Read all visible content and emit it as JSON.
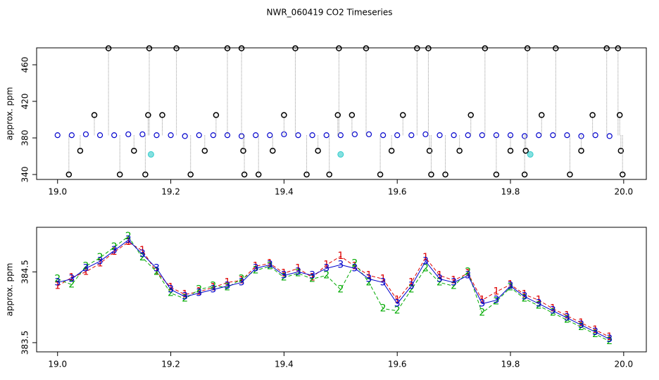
{
  "chart_data": [
    {
      "type": "scatter",
      "title": "NWR_060419  CO2 Timeseries",
      "y_label": "approx. ppm",
      "xlim": [
        18.963,
        20.04
      ],
      "ylim": [
        334.6,
        478.5
      ],
      "xticks": [
        {
          "value": 19,
          "label": "19.0"
        },
        {
          "value": 19.2,
          "label": "19.2"
        },
        {
          "value": 19.4,
          "label": "19.4"
        },
        {
          "value": 19.6,
          "label": "19.6"
        },
        {
          "value": 19.8,
          "label": "19.8"
        },
        {
          "value": 20,
          "label": "20.0"
        }
      ],
      "yticks": [
        340,
        380,
        420,
        460
      ],
      "series": [
        {
          "color": "#0000cc",
          "marker": "circle",
          "x": [
            19.0,
            19.025,
            19.05,
            19.075,
            19.1,
            19.125,
            19.15,
            19.175,
            19.2,
            19.225,
            19.25,
            19.275,
            19.3,
            19.325,
            19.35,
            19.375,
            19.4,
            19.425,
            19.45,
            19.475,
            19.5,
            19.525,
            19.55,
            19.575,
            19.6,
            19.625,
            19.65,
            19.675,
            19.7,
            19.725,
            19.75,
            19.775,
            19.8,
            19.825,
            19.85,
            19.875,
            19.9,
            19.925,
            19.95,
            19.975
          ],
          "values": [
            383,
            383,
            384,
            383,
            383,
            384,
            384,
            383,
            383,
            382,
            383,
            383,
            383,
            382,
            383,
            383,
            384,
            383,
            383,
            383,
            383,
            384,
            384,
            383,
            383,
            383,
            384,
            383,
            383,
            383,
            383,
            383,
            383,
            382,
            383,
            383,
            383,
            382,
            383,
            382
          ]
        },
        {
          "color": "#000000",
          "marker": "outlier",
          "x": [
            19.02,
            19.04,
            19.065,
            19.09,
            19.11,
            19.135,
            19.155,
            19.16,
            19.162,
            19.185,
            19.21,
            19.235,
            19.26,
            19.28,
            19.3,
            19.325,
            19.328,
            19.33,
            19.355,
            19.38,
            19.4,
            19.42,
            19.44,
            19.46,
            19.48,
            19.495,
            19.497,
            19.52,
            19.545,
            19.57,
            19.59,
            19.61,
            19.635,
            19.655,
            19.657,
            19.66,
            19.685,
            19.71,
            19.73,
            19.755,
            19.775,
            19.8,
            19.825,
            19.827,
            19.83,
            19.855,
            19.88,
            19.905,
            19.925,
            19.945,
            19.97,
            19.99,
            19.993,
            19.995,
            19.998
          ],
          "values": [
            340,
            366,
            405,
            478,
            340,
            366,
            340,
            405,
            478,
            405,
            478,
            340,
            366,
            405,
            478,
            478,
            366,
            340,
            340,
            366,
            405,
            478,
            340,
            366,
            340,
            405,
            478,
            405,
            478,
            340,
            366,
            405,
            478,
            478,
            366,
            340,
            340,
            366,
            405,
            478,
            340,
            366,
            340,
            366,
            478,
            405,
            478,
            340,
            366,
            405,
            478,
            478,
            405,
            366,
            340
          ]
        },
        {
          "color": "#33cccc",
          "marker": "dot",
          "x": [
            19.165,
            19.5,
            19.835
          ],
          "values": [
            362,
            362,
            362
          ]
        }
      ]
    },
    {
      "type": "glyph",
      "y_label": "approx. ppm",
      "xlim": [
        18.963,
        20.04
      ],
      "ylim": [
        383.37,
        385.13
      ],
      "xticks": [
        {
          "value": 19,
          "label": "19.0"
        },
        {
          "value": 19.2,
          "label": "19.2"
        },
        {
          "value": 19.4,
          "label": "19.4"
        },
        {
          "value": 19.6,
          "label": "19.6"
        },
        {
          "value": 19.8,
          "label": "19.8"
        },
        {
          "value": 20,
          "label": "20.0"
        }
      ],
      "yticks": [
        {
          "value": 383.5,
          "label": "383.5"
        },
        {
          "value": 384.5,
          "label": "384.5"
        }
      ],
      "x": [
        19.0,
        19.025,
        19.05,
        19.075,
        19.1,
        19.125,
        19.15,
        19.175,
        19.2,
        19.225,
        19.25,
        19.275,
        19.3,
        19.325,
        19.35,
        19.375,
        19.4,
        19.425,
        19.45,
        19.475,
        19.5,
        19.525,
        19.55,
        19.575,
        19.6,
        19.625,
        19.65,
        19.675,
        19.7,
        19.725,
        19.75,
        19.775,
        19.8,
        19.825,
        19.85,
        19.875,
        19.9,
        19.925,
        19.95,
        19.975
      ],
      "series": [
        {
          "name": "1",
          "color": "#dd0000",
          "values": [
            384.3,
            384.42,
            384.5,
            384.62,
            384.78,
            384.92,
            384.8,
            384.5,
            384.28,
            384.18,
            384.22,
            384.28,
            384.35,
            384.38,
            384.58,
            384.62,
            384.48,
            384.55,
            384.42,
            384.6,
            384.72,
            384.58,
            384.45,
            384.4,
            384.1,
            384.35,
            384.7,
            384.45,
            384.38,
            384.48,
            384.1,
            384.22,
            384.32,
            384.18,
            384.1,
            383.98,
            383.88,
            383.78,
            383.68,
            383.58
          ]
        },
        {
          "name": "2",
          "color": "#00aa00",
          "values": [
            384.4,
            384.32,
            384.58,
            384.7,
            384.85,
            385.0,
            384.7,
            384.5,
            384.2,
            384.12,
            384.25,
            384.3,
            384.28,
            384.4,
            384.52,
            384.58,
            384.42,
            384.48,
            384.4,
            384.45,
            384.25,
            384.62,
            384.35,
            383.98,
            383.95,
            384.25,
            384.55,
            384.35,
            384.3,
            384.5,
            383.92,
            384.08,
            384.28,
            384.12,
            384.02,
            383.92,
            383.82,
            383.72,
            383.62,
            383.52
          ]
        },
        {
          "name": "3",
          "color": "#0000cc",
          "values": [
            384.35,
            384.4,
            384.55,
            384.65,
            384.8,
            384.95,
            384.75,
            384.55,
            384.25,
            384.15,
            384.2,
            384.25,
            384.3,
            384.35,
            384.55,
            384.6,
            384.45,
            384.5,
            384.45,
            384.55,
            384.6,
            384.55,
            384.4,
            384.35,
            384.05,
            384.3,
            384.65,
            384.4,
            384.35,
            384.45,
            384.05,
            384.1,
            384.3,
            384.15,
            384.05,
            383.95,
            383.85,
            383.75,
            383.65,
            383.55
          ]
        }
      ]
    }
  ]
}
